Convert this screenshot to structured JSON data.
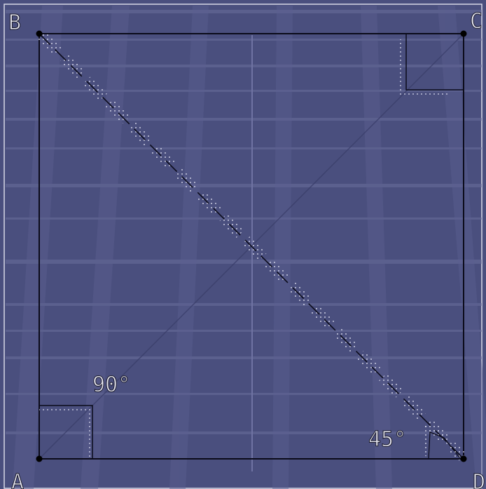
{
  "vertices": {
    "A": "A",
    "B": "B",
    "C": "C",
    "D": "D"
  },
  "angles": {
    "right_angle": "90°",
    "diagonal_angle": "45°"
  },
  "colors": {
    "background": "#4a4f7e",
    "stripe": "#6a6e9c",
    "ray": "#5c6090",
    "line": "#0b0b1a",
    "label": "#e8e8f2",
    "label_outline": "#1b1b2a",
    "dot": "#f2f2ff"
  }
}
